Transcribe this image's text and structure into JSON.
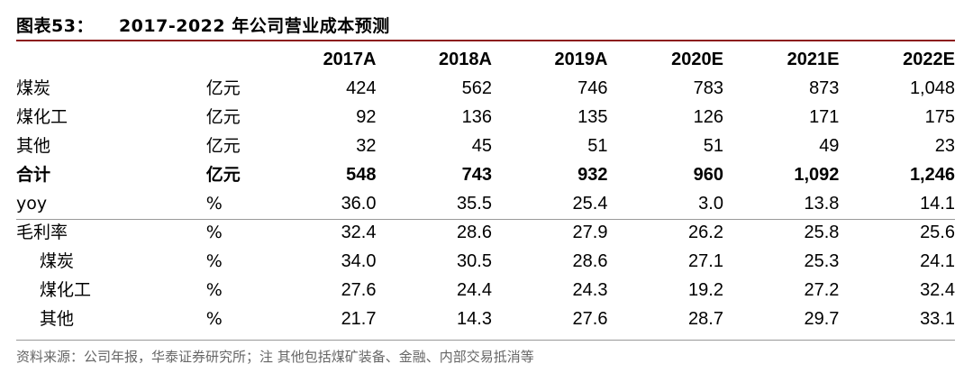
{
  "title": {
    "label": "图表53：",
    "text": "2017-2022 年公司营业成本预测"
  },
  "table": {
    "columns": [
      "2017A",
      "2018A",
      "2019A",
      "2020E",
      "2021E",
      "2022E"
    ],
    "rows": [
      {
        "label": "煤炭",
        "unit": "亿元",
        "values": [
          "424",
          "562",
          "746",
          "783",
          "873",
          "1,048"
        ],
        "bold": false,
        "indent": false
      },
      {
        "label": "煤化工",
        "unit": "亿元",
        "values": [
          "92",
          "136",
          "135",
          "126",
          "171",
          "175"
        ],
        "bold": false,
        "indent": false
      },
      {
        "label": "其他",
        "unit": "亿元",
        "values": [
          "32",
          "45",
          "51",
          "51",
          "49",
          "23"
        ],
        "bold": false,
        "indent": false
      },
      {
        "label": "合计",
        "unit": "亿元",
        "values": [
          "548",
          "743",
          "932",
          "960",
          "1,092",
          "1,246"
        ],
        "bold": true,
        "indent": false
      },
      {
        "label": "yoy",
        "unit": "%",
        "values": [
          "36.0",
          "35.5",
          "25.4",
          "3.0",
          "13.8",
          "14.1"
        ],
        "bold": false,
        "indent": false
      },
      {
        "label": "毛利率",
        "unit": "%",
        "values": [
          "32.4",
          "28.6",
          "27.9",
          "26.2",
          "25.8",
          "25.6"
        ],
        "bold": false,
        "indent": false
      },
      {
        "label": "煤炭",
        "unit": "%",
        "values": [
          "34.0",
          "30.5",
          "28.6",
          "27.1",
          "25.3",
          "24.1"
        ],
        "bold": false,
        "indent": true
      },
      {
        "label": "煤化工",
        "unit": "%",
        "values": [
          "27.6",
          "24.4",
          "24.3",
          "19.2",
          "27.2",
          "32.4"
        ],
        "bold": false,
        "indent": true
      },
      {
        "label": "其他",
        "unit": "%",
        "values": [
          "21.7",
          "14.3",
          "27.6",
          "28.7",
          "29.7",
          "33.1"
        ],
        "bold": false,
        "indent": true
      }
    ]
  },
  "source": "资料来源：公司年报，华泰证券研究所；注 其他包括煤矿装备、金融、内部交易抵消等"
}
